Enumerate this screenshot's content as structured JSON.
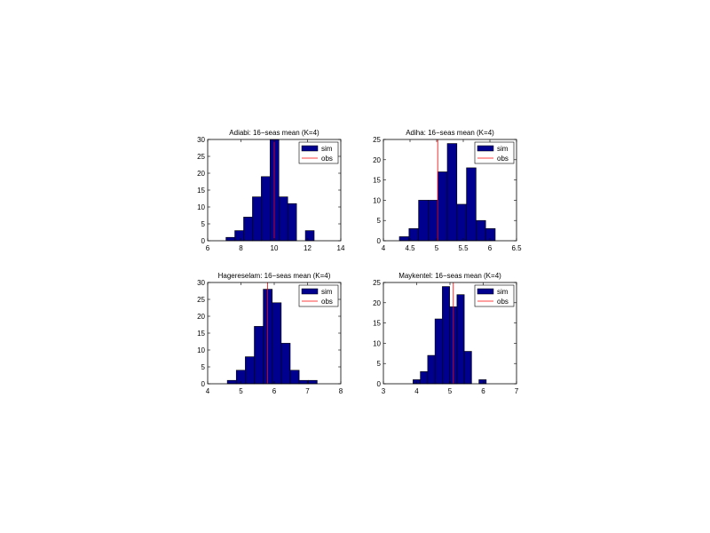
{
  "colors": {
    "bar": "#00008f",
    "obs_line": "#ff0000",
    "axis": "#000000"
  },
  "chart_data": [
    {
      "type": "bar",
      "title": "Adiabi: 16−seas mean (K=4)",
      "xlim": [
        6,
        14
      ],
      "ylim": [
        0,
        30
      ],
      "xticks": [
        6,
        8,
        10,
        12,
        14
      ],
      "yticks": [
        0,
        5,
        10,
        15,
        20,
        25,
        30
      ],
      "xtick_labels": [
        "6",
        "8",
        "10",
        "12",
        "14"
      ],
      "ytick_labels": [
        "0",
        "5",
        "10",
        "15",
        "20",
        "25",
        "30"
      ],
      "bin_width": 0.53,
      "bins": [
        {
          "x": 7.1,
          "y": 1
        },
        {
          "x": 7.63,
          "y": 3
        },
        {
          "x": 8.16,
          "y": 7
        },
        {
          "x": 8.69,
          "y": 13
        },
        {
          "x": 9.22,
          "y": 19
        },
        {
          "x": 9.75,
          "y": 30
        },
        {
          "x": 10.28,
          "y": 13
        },
        {
          "x": 10.81,
          "y": 11
        },
        {
          "x": 11.34,
          "y": 0
        },
        {
          "x": 11.87,
          "y": 3
        }
      ],
      "obs": 10.0,
      "legend": {
        "position": "top-right",
        "entries": [
          "sim",
          "obs"
        ]
      }
    },
    {
      "type": "bar",
      "title": "Adiha: 16−seas mean (K=4)",
      "xlim": [
        4,
        6.5
      ],
      "ylim": [
        0,
        25
      ],
      "xticks": [
        4,
        4.5,
        5,
        5.5,
        6,
        6.5
      ],
      "yticks": [
        0,
        5,
        10,
        15,
        20,
        25
      ],
      "xtick_labels": [
        "4",
        "4.5",
        "5",
        "5.5",
        "6",
        "6.5"
      ],
      "ytick_labels": [
        "0",
        "5",
        "10",
        "15",
        "20",
        "25"
      ],
      "bin_width": 0.18,
      "bins": [
        {
          "x": 4.3,
          "y": 1
        },
        {
          "x": 4.48,
          "y": 3
        },
        {
          "x": 4.66,
          "y": 10
        },
        {
          "x": 4.84,
          "y": 10
        },
        {
          "x": 5.02,
          "y": 17
        },
        {
          "x": 5.2,
          "y": 24
        },
        {
          "x": 5.38,
          "y": 9
        },
        {
          "x": 5.56,
          "y": 18
        },
        {
          "x": 5.74,
          "y": 5
        },
        {
          "x": 5.92,
          "y": 3
        }
      ],
      "obs": 5.02,
      "legend": {
        "position": "top-right",
        "entries": [
          "sim",
          "obs"
        ]
      }
    },
    {
      "type": "bar",
      "title": "Hagereselam: 16−seas mean (K=4)",
      "xlim": [
        4,
        8
      ],
      "ylim": [
        0,
        30
      ],
      "xticks": [
        4,
        5,
        6,
        7,
        8
      ],
      "yticks": [
        0,
        5,
        10,
        15,
        20,
        25,
        30
      ],
      "xtick_labels": [
        "4",
        "5",
        "6",
        "7",
        "8"
      ],
      "ytick_labels": [
        "0",
        "5",
        "10",
        "15",
        "20",
        "25",
        "30"
      ],
      "bin_width": 0.27,
      "bins": [
        {
          "x": 4.59,
          "y": 1
        },
        {
          "x": 4.86,
          "y": 4
        },
        {
          "x": 5.13,
          "y": 8
        },
        {
          "x": 5.4,
          "y": 17
        },
        {
          "x": 5.67,
          "y": 28
        },
        {
          "x": 5.94,
          "y": 24
        },
        {
          "x": 6.21,
          "y": 12
        },
        {
          "x": 6.48,
          "y": 4
        },
        {
          "x": 6.75,
          "y": 1
        },
        {
          "x": 7.02,
          "y": 1
        }
      ],
      "obs": 5.8,
      "legend": {
        "position": "top-right",
        "entries": [
          "sim",
          "obs"
        ]
      }
    },
    {
      "type": "bar",
      "title": "Maykentel: 16−seas mean (K=4)",
      "xlim": [
        3,
        7
      ],
      "ylim": [
        0,
        25
      ],
      "xticks": [
        3,
        4,
        5,
        6,
        7
      ],
      "yticks": [
        0,
        5,
        10,
        15,
        20,
        25
      ],
      "xtick_labels": [
        "3",
        "4",
        "5",
        "6",
        "7"
      ],
      "ytick_labels": [
        "0",
        "5",
        "10",
        "15",
        "20",
        "25"
      ],
      "bin_width": 0.22,
      "bins": [
        {
          "x": 3.89,
          "y": 1
        },
        {
          "x": 4.11,
          "y": 3
        },
        {
          "x": 4.33,
          "y": 7
        },
        {
          "x": 4.55,
          "y": 16
        },
        {
          "x": 4.77,
          "y": 24
        },
        {
          "x": 4.99,
          "y": 19
        },
        {
          "x": 5.21,
          "y": 22
        },
        {
          "x": 5.43,
          "y": 8
        },
        {
          "x": 5.65,
          "y": 0
        },
        {
          "x": 5.87,
          "y": 1
        }
      ],
      "obs": 5.1,
      "legend": {
        "position": "top-right",
        "entries": [
          "sim",
          "obs"
        ]
      }
    }
  ]
}
